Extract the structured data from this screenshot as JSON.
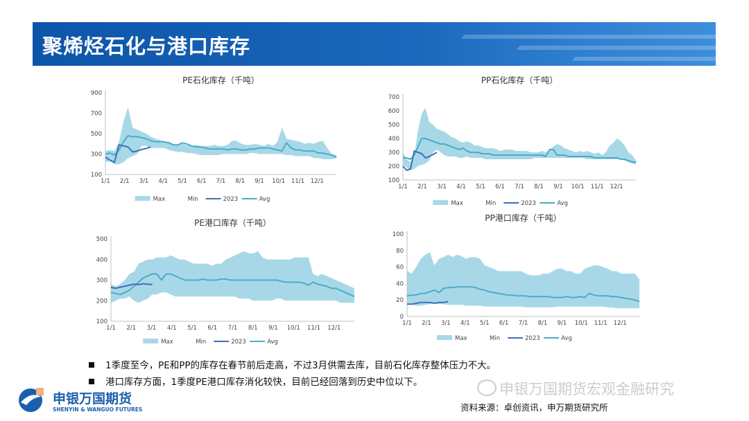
{
  "header": {
    "title": "聚烯烃石化与港口库存"
  },
  "legend_labels": [
    "Max",
    "Min",
    "2023",
    "Avg"
  ],
  "colors": {
    "band": "#a8d8e8",
    "line2023": "#3f6fb5",
    "avg": "#4bacc6"
  },
  "bullets": [
    "1季度至今，PE和PP的库存在春节前后走高，不过3月供需去库，目前石化库存整体压力不大。",
    "港口库存方面，1季度PE港口库存消化较快，目前已经回落到历史中位以下。"
  ],
  "footer": {
    "company_cn": "申银万国期货",
    "company_en": "SHENYIN & WANGUO FUTURES",
    "watermark": "申银万国期货宏观金融研究",
    "source": "资料来源：卓创资讯，申万期货研究所"
  },
  "chart_data": [
    {
      "type": "area",
      "title": "PE石化库存（千吨）",
      "x_labels": [
        "1/1",
        "2/1",
        "3/1",
        "4/1",
        "5/1",
        "6/1",
        "7/1",
        "8/1",
        "9/1",
        "10/1",
        "11/1",
        "12/1"
      ],
      "y_ticks": [
        100,
        300,
        500,
        700,
        900
      ],
      "ylim": [
        100,
        900
      ],
      "series": [
        {
          "name": "Max",
          "values": [
            330,
            340,
            330,
            420,
            620,
            760,
            560,
            540,
            520,
            500,
            470,
            450,
            440,
            420,
            420,
            400,
            390,
            400,
            390,
            380,
            390,
            380,
            380,
            380,
            390,
            380,
            380,
            390,
            430,
            430,
            400,
            390,
            390,
            400,
            390,
            380,
            400,
            380,
            420,
            560,
            450,
            440,
            430,
            420,
            400,
            410,
            400,
            420,
            430,
            360,
            300,
            290
          ]
        },
        {
          "name": "Min",
          "values": [
            220,
            230,
            200,
            200,
            220,
            260,
            280,
            300,
            380,
            380,
            360,
            360,
            360,
            360,
            340,
            330,
            320,
            320,
            310,
            310,
            300,
            290,
            290,
            290,
            290,
            290,
            300,
            300,
            300,
            300,
            300,
            300,
            310,
            310,
            300,
            300,
            300,
            300,
            300,
            300,
            290,
            290,
            280,
            280,
            280,
            280,
            260,
            260,
            250,
            250,
            250,
            260
          ]
        },
        {
          "name": "2023",
          "values": [
            270,
            240,
            220,
            390,
            380,
            370,
            320,
            330,
            345,
            355,
            370
          ]
        },
        {
          "name": "Avg",
          "values": [
            300,
            310,
            290,
            340,
            420,
            480,
            470,
            470,
            460,
            450,
            430,
            420,
            420,
            420,
            410,
            390,
            390,
            410,
            400,
            380,
            370,
            370,
            360,
            350,
            350,
            350,
            350,
            340,
            350,
            350,
            340,
            340,
            350,
            350,
            360,
            360,
            360,
            350,
            340,
            330,
            410,
            360,
            340,
            340,
            330,
            330,
            330,
            310,
            310,
            300,
            290,
            270
          ]
        }
      ]
    },
    {
      "type": "area",
      "title": "PP石化库存（千吨）",
      "x_labels": [
        "1/1",
        "2/1",
        "3/1",
        "4/1",
        "5/1",
        "6/1",
        "7/1",
        "8/1",
        "9/1",
        "10/1",
        "11/1",
        "12/1"
      ],
      "y_ticks": [
        100,
        200,
        300,
        400,
        500,
        600,
        700
      ],
      "ylim": [
        100,
        700
      ],
      "series": [
        {
          "name": "Max",
          "values": [
            300,
            250,
            230,
            270,
            460,
            580,
            620,
            520,
            500,
            470,
            460,
            450,
            430,
            410,
            400,
            380,
            370,
            380,
            370,
            350,
            350,
            340,
            330,
            330,
            330,
            320,
            310,
            320,
            320,
            320,
            310,
            310,
            310,
            310,
            300,
            300,
            300,
            310,
            300,
            320,
            340,
            360,
            350,
            330,
            320,
            310,
            300,
            310,
            300,
            310,
            300,
            290,
            300,
            280,
            300,
            350,
            370,
            400,
            380,
            350,
            300,
            280,
            240
          ]
        },
        {
          "name": "Min",
          "values": [
            210,
            190,
            170,
            180,
            200,
            210,
            220,
            240,
            300,
            320,
            300,
            280,
            270,
            270,
            270,
            260,
            260,
            270,
            260,
            260,
            260,
            260,
            250,
            250,
            250,
            250,
            250,
            250,
            250,
            250,
            250,
            250,
            250,
            250,
            250,
            260,
            260,
            260,
            260,
            260,
            260,
            260,
            260,
            260,
            260,
            260,
            260,
            260,
            260,
            250,
            250,
            250,
            250,
            250,
            250,
            250,
            250,
            250,
            250,
            240,
            230,
            220,
            210
          ]
        },
        {
          "name": "2023",
          "values": [
            200,
            170,
            180,
            310,
            300,
            290,
            260,
            270,
            285,
            300
          ]
        },
        {
          "name": "Avg",
          "values": [
            260,
            260,
            250,
            280,
            340,
            400,
            400,
            390,
            380,
            370,
            360,
            360,
            350,
            340,
            330,
            320,
            330,
            310,
            300,
            300,
            300,
            290,
            290,
            290,
            280,
            280,
            280,
            280,
            280,
            280,
            280,
            280,
            280,
            280,
            280,
            280,
            280,
            280,
            270,
            320,
            320,
            280,
            280,
            280,
            270,
            270,
            270,
            270,
            270,
            270,
            270,
            260,
            260,
            260,
            260,
            260,
            260,
            260,
            250,
            250,
            240,
            230,
            230
          ]
        }
      ]
    },
    {
      "type": "area",
      "title": "PE港口库存（千吨）",
      "x_labels": [
        "1/1",
        "2/1",
        "3/1",
        "4/1",
        "5/1",
        "6/1",
        "7/1",
        "8/1",
        "9/1",
        "10/1",
        "11/1",
        "12/1"
      ],
      "y_ticks": [
        100,
        200,
        300,
        400,
        500
      ],
      "ylim": [
        100,
        500
      ],
      "series": [
        {
          "name": "Max",
          "values": [
            280,
            270,
            280,
            300,
            330,
            340,
            380,
            390,
            400,
            400,
            410,
            410,
            410,
            420,
            410,
            400,
            400,
            390,
            380,
            380,
            380,
            380,
            370,
            380,
            380,
            400,
            410,
            420,
            430,
            440,
            430,
            430,
            440,
            410,
            400,
            400,
            400,
            400,
            400,
            400,
            410,
            410,
            410,
            410,
            330,
            320,
            330,
            320,
            310,
            300,
            290,
            280,
            270,
            260
          ]
        },
        {
          "name": "Min",
          "values": [
            190,
            200,
            210,
            210,
            220,
            200,
            190,
            200,
            210,
            230,
            230,
            240,
            240,
            230,
            220,
            220,
            220,
            220,
            220,
            220,
            220,
            220,
            220,
            220,
            220,
            220,
            220,
            220,
            210,
            210,
            210,
            200,
            200,
            200,
            200,
            200,
            210,
            210,
            200,
            200,
            200,
            200,
            200,
            200,
            200,
            200,
            200,
            200,
            200,
            200,
            190,
            190,
            190,
            190
          ]
        },
        {
          "name": "2023",
          "values": [
            265,
            260,
            265,
            270,
            275,
            280,
            278,
            282,
            280,
            278
          ]
        },
        {
          "name": "Avg",
          "values": [
            240,
            235,
            230,
            240,
            250,
            270,
            290,
            310,
            320,
            330,
            330,
            300,
            330,
            330,
            320,
            310,
            300,
            300,
            300,
            300,
            305,
            300,
            300,
            300,
            305,
            305,
            300,
            300,
            300,
            300,
            300,
            300,
            300,
            300,
            300,
            300,
            300,
            295,
            290,
            290,
            290,
            290,
            285,
            275,
            290,
            280,
            275,
            270,
            260,
            260,
            250,
            240,
            230,
            220
          ]
        }
      ]
    },
    {
      "type": "area",
      "title": "PP港口库存（千吨）",
      "x_labels": [
        "1/1",
        "2/1",
        "3/1",
        "4/1",
        "5/1",
        "6/1",
        "7/1",
        "8/1",
        "9/1",
        "10/1",
        "11/1",
        "12/1"
      ],
      "y_ticks": [
        0,
        20,
        40,
        60,
        80,
        100
      ],
      "ylim": [
        0,
        100
      ],
      "series": [
        {
          "name": "Max",
          "values": [
            55,
            52,
            60,
            70,
            75,
            78,
            62,
            70,
            72,
            75,
            72,
            75,
            73,
            70,
            72,
            72,
            70,
            62,
            60,
            58,
            55,
            55,
            55,
            55,
            55,
            55,
            52,
            50,
            50,
            50,
            52,
            52,
            55,
            58,
            58,
            55,
            55,
            52,
            52,
            58,
            60,
            62,
            62,
            60,
            58,
            55,
            55,
            52,
            52,
            52,
            52,
            45
          ]
        },
        {
          "name": "Min",
          "values": [
            15,
            14,
            13,
            13,
            14,
            15,
            16,
            15,
            15,
            14,
            14,
            14,
            14,
            13,
            13,
            13,
            13,
            12,
            12,
            12,
            12,
            12,
            12,
            12,
            12,
            12,
            11,
            11,
            11,
            11,
            11,
            11,
            11,
            12,
            12,
            12,
            12,
            12,
            12,
            12,
            12,
            12,
            12,
            12,
            11,
            11,
            10,
            10,
            10,
            10,
            10,
            10
          ]
        },
        {
          "name": "2023",
          "values": [
            15,
            15,
            16,
            17,
            17,
            17,
            16,
            17,
            17,
            18
          ]
        },
        {
          "name": "Avg",
          "values": [
            25,
            26,
            26,
            28,
            28,
            30,
            32,
            29,
            34,
            35,
            35,
            36,
            36,
            36,
            36,
            35,
            33,
            32,
            30,
            29,
            28,
            27,
            26,
            26,
            25,
            25,
            25,
            24,
            24,
            24,
            24,
            24,
            23,
            23,
            23,
            24,
            23,
            23,
            24,
            23,
            28,
            26,
            25,
            25,
            25,
            24,
            24,
            23,
            22,
            21,
            20,
            18
          ]
        }
      ]
    }
  ]
}
